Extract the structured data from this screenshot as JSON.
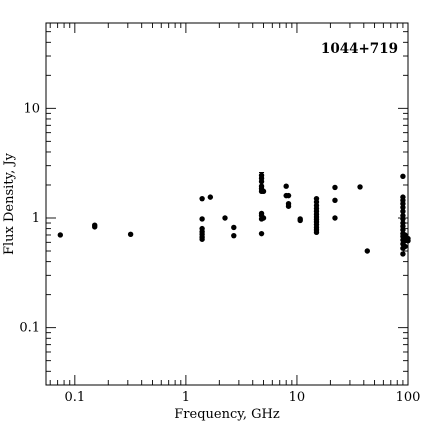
{
  "chart_data": {
    "type": "scatter",
    "title": "1044+719",
    "xlabel": "Frequency, GHz",
    "ylabel": "Flux Density, Jy",
    "x_scale": "log",
    "y_scale": "log",
    "xlim": [
      0.055,
      100
    ],
    "ylim": [
      0.03,
      60
    ],
    "x_tick_labels": [
      "0.1",
      "1",
      "10",
      "100"
    ],
    "y_tick_labels": [
      "0.1",
      "1",
      "10"
    ],
    "grid": false,
    "legend": "none",
    "series": [
      {
        "points": [
          [
            0.074,
            0.7
          ],
          [
            0.151,
            0.83
          ],
          [
            0.151,
            0.86
          ],
          [
            0.318,
            0.71
          ],
          [
            1.4,
            1.5
          ],
          [
            1.4,
            0.98
          ],
          [
            1.4,
            0.8
          ],
          [
            1.4,
            0.75
          ],
          [
            1.4,
            0.71
          ],
          [
            1.4,
            0.67
          ],
          [
            1.4,
            0.64
          ],
          [
            1.66,
            1.55
          ],
          [
            2.25,
            1.0
          ],
          [
            2.7,
            0.82
          ],
          [
            2.7,
            0.69
          ],
          [
            4.8,
            2.45
          ],
          [
            4.8,
            2.3
          ],
          [
            4.8,
            2.15
          ],
          [
            4.8,
            1.95
          ],
          [
            4.8,
            1.85
          ],
          [
            4.8,
            1.75
          ],
          [
            4.8,
            1.1
          ],
          [
            4.8,
            1.05
          ],
          [
            4.8,
            0.98
          ],
          [
            4.8,
            0.72
          ],
          [
            5.0,
            1.75
          ],
          [
            5.0,
            1.0
          ],
          [
            8.0,
            1.95
          ],
          [
            8.0,
            1.6
          ],
          [
            8.4,
            1.6
          ],
          [
            8.4,
            1.35
          ],
          [
            8.4,
            1.28
          ],
          [
            10.7,
            0.98
          ],
          [
            10.7,
            0.95
          ],
          [
            15.0,
            1.5
          ],
          [
            15.0,
            1.4
          ],
          [
            15.0,
            1.3
          ],
          [
            15.0,
            1.22
          ],
          [
            15.0,
            1.15
          ],
          [
            15.0,
            1.08
          ],
          [
            15.0,
            1.02
          ],
          [
            15.0,
            0.97
          ],
          [
            15.0,
            0.92
          ],
          [
            15.0,
            0.87
          ],
          [
            15.0,
            0.82
          ],
          [
            15.0,
            0.78
          ],
          [
            15.0,
            0.74
          ],
          [
            22.0,
            1.9
          ],
          [
            22.0,
            1.45
          ],
          [
            22.0,
            1.0
          ],
          [
            37.0,
            1.92
          ],
          [
            43.0,
            0.5
          ],
          [
            90.0,
            2.4
          ],
          [
            90.0,
            1.55
          ],
          [
            90.0,
            1.45
          ],
          [
            90.0,
            1.35
          ],
          [
            90.0,
            1.25
          ],
          [
            90.0,
            1.15
          ],
          [
            90.0,
            1.05
          ],
          [
            90.0,
            0.98
          ],
          [
            90.0,
            0.9
          ],
          [
            90.0,
            0.84
          ],
          [
            90.0,
            0.78
          ],
          [
            90.0,
            0.72
          ],
          [
            90.0,
            0.68
          ],
          [
            90.0,
            0.63
          ],
          [
            90.0,
            0.58
          ],
          [
            90.0,
            0.53
          ],
          [
            90.0,
            0.47
          ],
          [
            94.0,
            0.7
          ],
          [
            94.0,
            0.66
          ],
          [
            94.0,
            0.62
          ],
          [
            94.0,
            0.55
          ],
          [
            100.0,
            0.65
          ],
          [
            100.0,
            0.62
          ]
        ],
        "errorbars": [
          {
            "x": 4.8,
            "y": 2.45,
            "yerr": 0.15
          }
        ]
      }
    ]
  }
}
